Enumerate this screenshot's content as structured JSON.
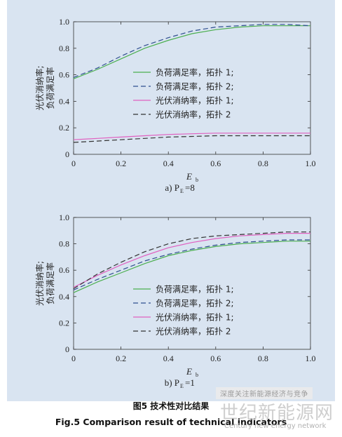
{
  "chart_data": [
    {
      "type": "line",
      "panel_label": "a) P",
      "panel_sub": "E",
      "panel_value": "=8",
      "xlabel": "E",
      "xlabel_sub": "b",
      "ylabel_line1": "光伏消纳率;",
      "ylabel_line2": "负荷满足率",
      "xlim": [
        0,
        1.0
      ],
      "ylim": [
        0,
        1.0
      ],
      "xticks": [
        "0",
        "0.2",
        "0.4",
        "0.6",
        "0.8",
        "1.0"
      ],
      "yticks": [
        "0",
        "0.2",
        "0.4",
        "0.6",
        "0.8",
        "1.0"
      ],
      "legend_position": "right",
      "x": [
        0,
        0.1,
        0.2,
        0.3,
        0.4,
        0.5,
        0.6,
        0.7,
        0.8,
        0.9,
        1.0
      ],
      "series": [
        {
          "name": "负荷满足率，拓扑 1;",
          "color": "#4caf50",
          "dash": "solid",
          "values": [
            0.57,
            0.64,
            0.72,
            0.8,
            0.86,
            0.91,
            0.94,
            0.96,
            0.97,
            0.97,
            0.97
          ]
        },
        {
          "name": "负荷满足率，拓扑 2;",
          "color": "#2f4f8f",
          "dash": "dashed",
          "values": [
            0.58,
            0.65,
            0.74,
            0.82,
            0.88,
            0.93,
            0.96,
            0.97,
            0.98,
            0.98,
            0.97
          ]
        },
        {
          "name": "光伏消纳率，拓扑 1;",
          "color": "#e060c0",
          "dash": "solid",
          "values": [
            0.11,
            0.12,
            0.13,
            0.14,
            0.15,
            0.155,
            0.16,
            0.16,
            0.16,
            0.16,
            0.16
          ]
        },
        {
          "name": "光伏消纳率，拓扑 2",
          "color": "#333333",
          "dash": "dashed",
          "values": [
            0.09,
            0.1,
            0.11,
            0.12,
            0.13,
            0.135,
            0.14,
            0.14,
            0.14,
            0.14,
            0.14
          ]
        }
      ]
    },
    {
      "type": "line",
      "panel_label": "b) P",
      "panel_sub": "E",
      "panel_value": "=1",
      "xlabel": "E",
      "xlabel_sub": "b",
      "ylabel_line1": "光伏消纳率;",
      "ylabel_line2": "负荷满足率",
      "xlim": [
        0,
        1.0
      ],
      "ylim": [
        0,
        1.0
      ],
      "xticks": [
        "0",
        "0.2",
        "0.4",
        "0.6",
        "0.8",
        "1.0"
      ],
      "yticks": [
        "0",
        "0.2",
        "0.4",
        "0.6",
        "0.8",
        "1.0"
      ],
      "legend_position": "right",
      "x": [
        0,
        0.1,
        0.2,
        0.3,
        0.4,
        0.5,
        0.6,
        0.7,
        0.8,
        0.9,
        1.0
      ],
      "series": [
        {
          "name": "负荷满足率，拓扑 1;",
          "color": "#4caf50",
          "dash": "solid",
          "values": [
            0.43,
            0.51,
            0.58,
            0.65,
            0.71,
            0.75,
            0.78,
            0.8,
            0.81,
            0.82,
            0.82
          ]
        },
        {
          "name": "负荷满足率，拓扑 2;",
          "color": "#2f4f8f",
          "dash": "dashed",
          "values": [
            0.45,
            0.53,
            0.6,
            0.67,
            0.72,
            0.76,
            0.79,
            0.81,
            0.82,
            0.83,
            0.83
          ]
        },
        {
          "name": "光伏消纳率，拓扑 1;",
          "color": "#e060c0",
          "dash": "solid",
          "values": [
            0.47,
            0.56,
            0.64,
            0.71,
            0.77,
            0.81,
            0.84,
            0.86,
            0.87,
            0.88,
            0.88
          ]
        },
        {
          "name": "光伏消纳率，拓扑 2",
          "color": "#333333",
          "dash": "dashed",
          "values": [
            0.46,
            0.57,
            0.66,
            0.74,
            0.8,
            0.84,
            0.86,
            0.87,
            0.88,
            0.89,
            0.89
          ]
        }
      ]
    }
  ],
  "caption": {
    "cn": "图5  技术性对比结果",
    "en": "Fig.5  Comparison result of technical indicators"
  },
  "watermark": {
    "banner": "深度关注新能源经济与竞争",
    "big": "世纪新能源网",
    "small": "Century new energy network"
  }
}
